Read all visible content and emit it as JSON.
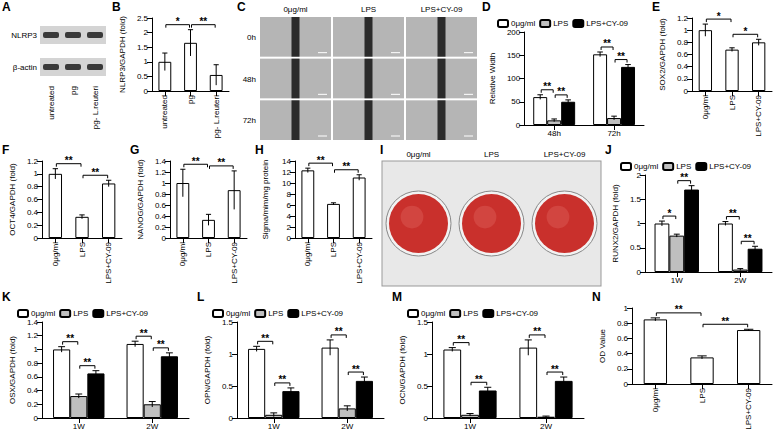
{
  "chart_data": [
    {
      "panel": "A",
      "type": "blot",
      "rows": [
        "NLRP3",
        "β-actin"
      ],
      "columns": [
        "untreated",
        "pg",
        "pg- L.reuteri"
      ]
    },
    {
      "panel": "B",
      "type": "bar",
      "ylabel": "NLRP3/GAPDH (fold)",
      "categories": [
        "untreated",
        "pg",
        "pg- L.reuteri"
      ],
      "values": [
        1.0,
        1.65,
        0.55
      ],
      "errors": [
        0.3,
        0.45,
        0.35
      ],
      "color": "#ffffff",
      "ylim": [
        0,
        2.5
      ],
      "yticks": [
        0,
        0.5,
        1,
        1.5,
        2,
        2.5
      ],
      "grid": false,
      "annotations": [
        {
          "between": [
            0,
            1
          ],
          "text": "*"
        },
        {
          "between": [
            1,
            2
          ],
          "text": "**"
        }
      ]
    },
    {
      "panel": "C",
      "type": "micrograph",
      "columns": [
        "0μg/ml",
        "LPS",
        "LPS+CY-09"
      ],
      "rows": [
        "0h",
        "48h",
        "72h"
      ]
    },
    {
      "panel": "D",
      "type": "bar",
      "ylabel": "Relative Width",
      "categories": [
        "48h",
        "72h"
      ],
      "series": [
        {
          "name": "0μg/ml",
          "color": "#ffffff",
          "values": [
            60,
            152
          ],
          "errors": [
            5,
            5
          ]
        },
        {
          "name": "LPS",
          "color": "#bfbfbf",
          "values": [
            10,
            15
          ],
          "errors": [
            3,
            4
          ]
        },
        {
          "name": "LPS+CY-09",
          "color": "#000000",
          "values": [
            50,
            125
          ],
          "errors": [
            4,
            5
          ]
        }
      ],
      "ylim": [
        0,
        200
      ],
      "yticks": [
        0,
        50,
        100,
        150,
        200
      ],
      "grid": false,
      "legend": "top-left",
      "annotations": [
        {
          "category": 0,
          "between": [
            0,
            1
          ],
          "text": "**"
        },
        {
          "category": 0,
          "between": [
            1,
            2
          ],
          "text": "**"
        },
        {
          "category": 1,
          "between": [
            0,
            1
          ],
          "text": "**"
        },
        {
          "category": 1,
          "between": [
            1,
            2
          ],
          "text": "**"
        }
      ]
    },
    {
      "panel": "E",
      "type": "bar",
      "ylabel": "SOX2/GAPDH (fold)",
      "categories": [
        "0μg/ml",
        "LPS",
        "LPS+CY-09"
      ],
      "values": [
        1.0,
        0.68,
        0.8
      ],
      "errors": [
        0.1,
        0.03,
        0.05
      ],
      "color": "#ffffff",
      "ylim": [
        0,
        1.2
      ],
      "yticks": [
        0,
        0.2,
        0.4,
        0.6,
        0.8,
        1,
        1.2
      ],
      "grid": false,
      "annotations": [
        {
          "between": [
            0,
            1
          ],
          "text": "*"
        },
        {
          "between": [
            1,
            2
          ],
          "text": "*"
        }
      ]
    },
    {
      "panel": "F",
      "type": "bar",
      "ylabel": "OCT4/GAPDH (fold)",
      "categories": [
        "0μg/ml",
        "LPS",
        "LPS+CY-09"
      ],
      "values": [
        1.0,
        0.33,
        0.85
      ],
      "errors": [
        0.08,
        0.03,
        0.05
      ],
      "color": "#ffffff",
      "ylim": [
        0,
        1.2
      ],
      "yticks": [
        0,
        0.2,
        0.4,
        0.6,
        0.8,
        1,
        1.2
      ],
      "grid": false,
      "annotations": [
        {
          "between": [
            0,
            1
          ],
          "text": "**"
        },
        {
          "between": [
            1,
            2
          ],
          "text": "**"
        }
      ]
    },
    {
      "panel": "G",
      "type": "bar",
      "ylabel": "NANOG/GAPDH (fold)",
      "categories": [
        "0μg/ml",
        "LPS",
        "LPS+CY-09"
      ],
      "values": [
        1.0,
        0.33,
        0.87
      ],
      "errors": [
        0.25,
        0.1,
        0.35
      ],
      "color": "#ffffff",
      "ylim": [
        0,
        1.4
      ],
      "yticks": [
        0,
        0.2,
        0.4,
        0.6,
        0.8,
        1,
        1.2,
        1.4
      ],
      "grid": false,
      "annotations": [
        {
          "between": [
            0,
            1
          ],
          "text": "**"
        },
        {
          "between": [
            1,
            2
          ],
          "text": "**"
        }
      ]
    },
    {
      "panel": "H",
      "type": "bar",
      "ylabel": "Sigma/mim/mg protein",
      "categories": [
        "0μg/ml",
        "LPS",
        "LPS+CY-09"
      ],
      "values": [
        12.3,
        6.2,
        11.0
      ],
      "errors": [
        0.4,
        0.2,
        0.5
      ],
      "color": "#ffffff",
      "ylim": [
        0,
        14
      ],
      "yticks": [
        0,
        2,
        4,
        6,
        8,
        10,
        12,
        14
      ],
      "grid": false,
      "annotations": [
        {
          "between": [
            0,
            1
          ],
          "text": "**"
        },
        {
          "between": [
            1,
            2
          ],
          "text": "**"
        }
      ]
    },
    {
      "panel": "I",
      "type": "photo",
      "columns": [
        "0μg/ml",
        "LPS",
        "LPS+CY-09"
      ]
    },
    {
      "panel": "J",
      "type": "bar",
      "ylabel": "RUNX2/GAPDH (fold)",
      "categories": [
        "1W",
        "2W"
      ],
      "series": [
        {
          "name": "0μg/ml",
          "color": "#ffffff",
          "values": [
            1.0,
            1.0
          ],
          "errors": [
            0.05,
            0.04
          ]
        },
        {
          "name": "LPS",
          "color": "#bfbfbf",
          "values": [
            0.75,
            0.05
          ],
          "errors": [
            0.03,
            0.02
          ]
        },
        {
          "name": "LPS+CY-09",
          "color": "#000000",
          "values": [
            1.7,
            0.48
          ],
          "errors": [
            0.08,
            0.05
          ]
        }
      ],
      "ylim": [
        0,
        2
      ],
      "yticks": [
        0,
        0.5,
        1,
        1.5,
        2
      ],
      "grid": false,
      "legend": "top-left",
      "annotations": [
        {
          "category": 0,
          "between": [
            0,
            1
          ],
          "text": "*"
        },
        {
          "category": 0,
          "between": [
            1,
            2
          ],
          "text": "**"
        },
        {
          "category": 1,
          "between": [
            0,
            1
          ],
          "text": "**"
        },
        {
          "category": 1,
          "between": [
            1,
            2
          ],
          "text": "**"
        }
      ]
    },
    {
      "panel": "K",
      "type": "bar",
      "ylabel": "OSX/GAPDH (fold)",
      "categories": [
        "1W",
        "2W"
      ],
      "series": [
        {
          "name": "0μg/ml",
          "color": "#ffffff",
          "values": [
            1.0,
            1.08
          ],
          "errors": [
            0.04,
            0.04
          ]
        },
        {
          "name": "LPS",
          "color": "#bfbfbf",
          "values": [
            0.32,
            0.2
          ],
          "errors": [
            0.03,
            0.04
          ]
        },
        {
          "name": "LPS+CY-09",
          "color": "#000000",
          "values": [
            0.65,
            0.9
          ],
          "errors": [
            0.04,
            0.05
          ]
        }
      ],
      "ylim": [
        0,
        1.4
      ],
      "yticks": [
        0,
        0.2,
        0.4,
        0.6,
        0.8,
        1,
        1.2,
        1.4
      ],
      "grid": false,
      "legend": "top-left",
      "annotations": [
        {
          "category": 0,
          "between": [
            0,
            1
          ],
          "text": "**"
        },
        {
          "category": 0,
          "between": [
            1,
            2
          ],
          "text": "**"
        },
        {
          "category": 1,
          "between": [
            0,
            1
          ],
          "text": "**"
        },
        {
          "category": 1,
          "between": [
            1,
            2
          ],
          "text": "**"
        }
      ]
    },
    {
      "panel": "L",
      "type": "bar",
      "ylabel": "OPN/GAPDH (fold)",
      "categories": [
        "1W",
        "2W"
      ],
      "series": [
        {
          "name": "0μg/ml",
          "color": "#ffffff",
          "values": [
            1.08,
            1.1
          ],
          "errors": [
            0.04,
            0.12
          ]
        },
        {
          "name": "LPS",
          "color": "#bfbfbf",
          "values": [
            0.05,
            0.15
          ],
          "errors": [
            0.03,
            0.04
          ]
        },
        {
          "name": "LPS+CY-09",
          "color": "#000000",
          "values": [
            0.42,
            0.58
          ],
          "errors": [
            0.05,
            0.06
          ]
        }
      ],
      "ylim": [
        0,
        1.5
      ],
      "yticks": [
        0,
        0.5,
        1,
        1.5
      ],
      "grid": false,
      "legend": "top-left",
      "annotations": [
        {
          "category": 0,
          "between": [
            0,
            1
          ],
          "text": "**"
        },
        {
          "category": 0,
          "between": [
            1,
            2
          ],
          "text": "**"
        },
        {
          "category": 1,
          "between": [
            0,
            1
          ],
          "text": "**"
        },
        {
          "category": 1,
          "between": [
            1,
            2
          ],
          "text": "**"
        }
      ]
    },
    {
      "panel": "M",
      "type": "bar",
      "ylabel": "OCN/GAPDH (fold)",
      "categories": [
        "1W",
        "2W"
      ],
      "series": [
        {
          "name": "0μg/ml",
          "color": "#ffffff",
          "values": [
            1.07,
            1.1
          ],
          "errors": [
            0.03,
            0.12
          ]
        },
        {
          "name": "LPS",
          "color": "#bfbfbf",
          "values": [
            0.05,
            0.02
          ],
          "errors": [
            0.02,
            0.01
          ]
        },
        {
          "name": "LPS+CY-09",
          "color": "#000000",
          "values": [
            0.43,
            0.58
          ],
          "errors": [
            0.05,
            0.06
          ]
        }
      ],
      "ylim": [
        0,
        1.5
      ],
      "yticks": [
        0,
        0.5,
        1,
        1.5
      ],
      "grid": false,
      "legend": "top-left",
      "annotations": [
        {
          "category": 0,
          "between": [
            0,
            1
          ],
          "text": "**"
        },
        {
          "category": 0,
          "between": [
            1,
            2
          ],
          "text": "**"
        },
        {
          "category": 1,
          "between": [
            0,
            1
          ],
          "text": "**"
        },
        {
          "category": 1,
          "between": [
            1,
            2
          ],
          "text": "**"
        }
      ]
    },
    {
      "panel": "N",
      "type": "bar",
      "ylabel": "OD Value",
      "categories": [
        "0μg/ml",
        "LPS",
        "LPS+CY-09"
      ],
      "values": [
        0.85,
        0.35,
        0.71
      ],
      "errors": [
        0.02,
        0.02,
        0.01
      ],
      "color": "#ffffff",
      "ylim": [
        0,
        1
      ],
      "yticks": [
        0,
        0.2,
        0.4,
        0.6,
        0.8,
        1
      ],
      "grid": false,
      "annotations": [
        {
          "between": [
            0,
            1
          ],
          "text": "**"
        },
        {
          "between": [
            1,
            2
          ],
          "text": "**"
        }
      ]
    }
  ]
}
